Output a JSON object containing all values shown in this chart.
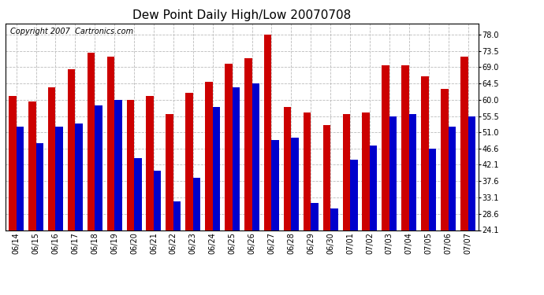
{
  "title": "Dew Point Daily High/Low 20070708",
  "copyright": "Copyright 2007  Cartronics.com",
  "dates": [
    "06/14",
    "06/15",
    "06/16",
    "06/17",
    "06/18",
    "06/19",
    "06/20",
    "06/21",
    "06/22",
    "06/23",
    "06/24",
    "06/25",
    "06/26",
    "06/27",
    "06/28",
    "06/29",
    "06/30",
    "07/01",
    "07/02",
    "07/03",
    "07/04",
    "07/05",
    "07/06",
    "07/07"
  ],
  "highs": [
    61.0,
    59.5,
    63.5,
    68.5,
    73.0,
    72.0,
    60.0,
    61.0,
    56.0,
    62.0,
    65.0,
    70.0,
    71.5,
    78.0,
    58.0,
    56.5,
    53.0,
    56.0,
    56.5,
    69.5,
    69.5,
    66.5,
    63.0,
    72.0
  ],
  "lows": [
    52.5,
    48.0,
    52.5,
    53.5,
    58.5,
    60.0,
    44.0,
    40.5,
    32.0,
    38.5,
    58.0,
    63.5,
    64.5,
    49.0,
    49.5,
    31.5,
    30.0,
    43.5,
    47.5,
    55.5,
    56.0,
    46.5,
    52.5,
    55.5
  ],
  "bar_color_high": "#cc0000",
  "bar_color_low": "#0000cc",
  "bg_color": "#ffffff",
  "plot_bg_color": "#ffffff",
  "grid_color": "#bbbbbb",
  "ylim_min": 24.1,
  "ylim_max": 81.0,
  "yticks": [
    24.1,
    28.6,
    33.1,
    37.6,
    42.1,
    46.6,
    51.0,
    55.5,
    60.0,
    64.5,
    69.0,
    73.5,
    78.0
  ],
  "ytick_labels": [
    "24.1",
    "28.6",
    "33.1",
    "37.6",
    "42.1",
    "46.6",
    "51.0",
    "55.5",
    "60.0",
    "64.5",
    "69.0",
    "73.5",
    "78.0"
  ],
  "bar_width": 0.38,
  "title_fontsize": 11,
  "tick_fontsize": 7,
  "copyright_fontsize": 7
}
